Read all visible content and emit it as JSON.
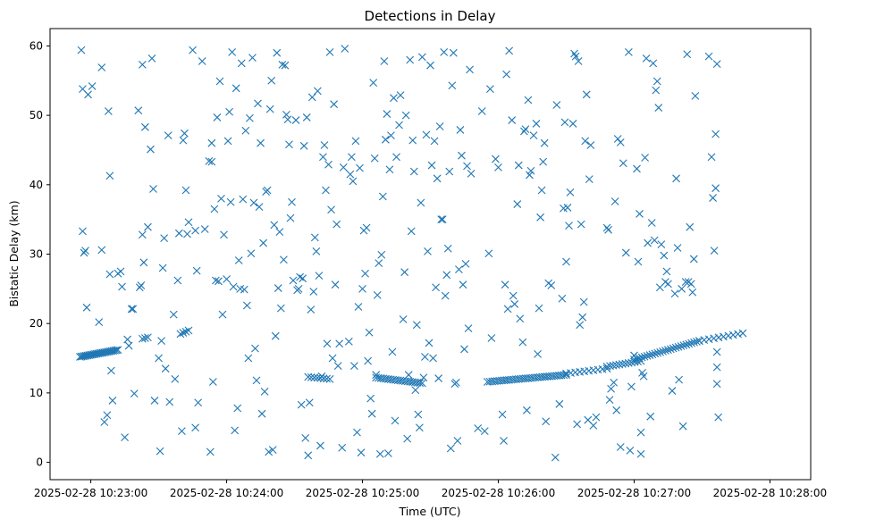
{
  "chart_data": {
    "type": "scatter",
    "title": "Detections in Delay",
    "xlabel": "Time (UTC)",
    "ylabel": "Bistatic Delay (km)",
    "marker": "x",
    "color": "#1f77b4",
    "xlim": [
      -0.3,
      5.3
    ],
    "ylim": [
      -2.5,
      62.5
    ],
    "x_unit": "minutes after 2025-02-28 10:23:00",
    "xticks": [
      {
        "v": 0,
        "label": "2025-02-28 10:23:00"
      },
      {
        "v": 1,
        "label": "2025-02-28 10:24:00"
      },
      {
        "v": 2,
        "label": "2025-02-28 10:25:00"
      },
      {
        "v": 3,
        "label": "2025-02-28 10:26:00"
      },
      {
        "v": 4,
        "label": "2025-02-28 10:27:00"
      },
      {
        "v": 5,
        "label": "2025-02-28 10:28:00"
      }
    ],
    "yticks": [
      0,
      10,
      20,
      30,
      40,
      50,
      60
    ],
    "track_segments": [
      {
        "x_start": -0.08,
        "x_end": 0.2,
        "y_start": 15.2,
        "y_end": 16.2,
        "count": 26
      },
      {
        "x_start": 0.38,
        "x_end": 0.42,
        "y_start": 17.8,
        "y_end": 18.0,
        "count": 3
      },
      {
        "x_start": 0.66,
        "x_end": 0.72,
        "y_start": 18.5,
        "y_end": 19.0,
        "count": 4
      },
      {
        "x_start": 1.6,
        "x_end": 1.76,
        "y_start": 12.3,
        "y_end": 12.0,
        "count": 8
      },
      {
        "x_start": 2.1,
        "x_end": 2.44,
        "y_start": 12.2,
        "y_end": 11.4,
        "count": 20
      },
      {
        "x_start": 2.92,
        "x_end": 3.5,
        "y_start": 11.6,
        "y_end": 12.6,
        "count": 34
      },
      {
        "x_start": 3.5,
        "x_end": 3.8,
        "y_start": 12.8,
        "y_end": 13.5,
        "count": 10
      },
      {
        "x_start": 3.8,
        "x_end": 4.05,
        "y_start": 13.8,
        "y_end": 14.6,
        "count": 12
      },
      {
        "x_start": 4.0,
        "x_end": 4.48,
        "y_start": 14.8,
        "y_end": 17.5,
        "count": 26
      },
      {
        "x_start": 4.48,
        "x_end": 4.8,
        "y_start": 17.5,
        "y_end": 18.6,
        "count": 10
      }
    ],
    "scattered_points": [
      [
        -0.07,
        59.4
      ],
      [
        -0.06,
        33.3
      ],
      [
        -0.06,
        53.8
      ],
      [
        -0.05,
        30.2
      ],
      [
        -0.04,
        30.5
      ],
      [
        -0.03,
        22.3
      ],
      [
        -0.02,
        53.0
      ],
      [
        0.01,
        54.2
      ],
      [
        0.06,
        20.2
      ],
      [
        0.08,
        56.9
      ],
      [
        0.08,
        30.6
      ],
      [
        0.1,
        5.8
      ],
      [
        0.12,
        6.8
      ],
      [
        0.13,
        50.6
      ],
      [
        0.14,
        41.3
      ],
      [
        0.14,
        27.1
      ],
      [
        0.15,
        13.2
      ],
      [
        0.16,
        8.9
      ],
      [
        0.2,
        27.2
      ],
      [
        0.22,
        27.5
      ],
      [
        0.23,
        25.3
      ],
      [
        0.25,
        3.6
      ],
      [
        0.27,
        17.7
      ],
      [
        0.28,
        16.8
      ],
      [
        0.3,
        22.1
      ],
      [
        0.31,
        22.1
      ],
      [
        0.32,
        9.9
      ],
      [
        0.35,
        50.7
      ],
      [
        0.36,
        25.2
      ],
      [
        0.37,
        25.5
      ],
      [
        0.38,
        57.3
      ],
      [
        0.38,
        32.8
      ],
      [
        0.39,
        28.8
      ],
      [
        0.4,
        48.3
      ],
      [
        0.42,
        33.9
      ],
      [
        0.44,
        45.1
      ],
      [
        0.45,
        58.2
      ],
      [
        0.46,
        39.4
      ],
      [
        0.47,
        8.9
      ],
      [
        0.5,
        15.0
      ],
      [
        0.51,
        1.6
      ],
      [
        0.52,
        17.5
      ],
      [
        0.53,
        28.0
      ],
      [
        0.54,
        32.3
      ],
      [
        0.55,
        13.5
      ],
      [
        0.57,
        47.1
      ],
      [
        0.58,
        8.7
      ],
      [
        0.61,
        21.3
      ],
      [
        0.62,
        12.0
      ],
      [
        0.64,
        26.2
      ],
      [
        0.65,
        33.0
      ],
      [
        0.67,
        4.5
      ],
      [
        0.68,
        46.4
      ],
      [
        0.69,
        47.4
      ],
      [
        0.7,
        39.2
      ],
      [
        0.71,
        32.9
      ],
      [
        0.72,
        34.6
      ],
      [
        0.75,
        59.4
      ],
      [
        0.77,
        5.0
      ],
      [
        0.77,
        33.4
      ],
      [
        0.78,
        27.6
      ],
      [
        0.79,
        8.6
      ],
      [
        0.82,
        57.8
      ],
      [
        0.84,
        33.6
      ],
      [
        0.87,
        43.4
      ],
      [
        0.88,
        1.5
      ],
      [
        0.89,
        46.0
      ],
      [
        0.89,
        43.3
      ],
      [
        0.9,
        11.6
      ],
      [
        0.91,
        36.5
      ],
      [
        0.92,
        26.2
      ],
      [
        0.93,
        49.7
      ],
      [
        0.94,
        26.1
      ],
      [
        0.95,
        54.9
      ],
      [
        0.96,
        38.0
      ],
      [
        0.97,
        21.3
      ],
      [
        0.98,
        32.8
      ],
      [
        1.0,
        26.4
      ],
      [
        1.01,
        46.3
      ],
      [
        1.02,
        50.5
      ],
      [
        1.03,
        37.5
      ],
      [
        1.04,
        59.1
      ],
      [
        1.05,
        25.3
      ],
      [
        1.06,
        4.6
      ],
      [
        1.07,
        53.9
      ],
      [
        1.08,
        7.8
      ],
      [
        1.09,
        29.1
      ],
      [
        1.1,
        25.0
      ],
      [
        1.11,
        57.5
      ],
      [
        1.12,
        37.9
      ],
      [
        1.13,
        24.9
      ],
      [
        1.14,
        47.8
      ],
      [
        1.15,
        22.6
      ],
      [
        1.16,
        15.0
      ],
      [
        1.17,
        49.6
      ],
      [
        1.18,
        30.1
      ],
      [
        1.19,
        58.3
      ],
      [
        1.2,
        37.4
      ],
      [
        1.21,
        16.4
      ],
      [
        1.22,
        11.8
      ],
      [
        1.23,
        51.7
      ],
      [
        1.24,
        36.8
      ],
      [
        1.25,
        46.0
      ],
      [
        1.26,
        7.0
      ],
      [
        1.27,
        31.6
      ],
      [
        1.28,
        10.2
      ],
      [
        1.29,
        39.0
      ],
      [
        1.3,
        39.2
      ],
      [
        1.31,
        1.5
      ],
      [
        1.32,
        50.9
      ],
      [
        1.33,
        55.0
      ],
      [
        1.34,
        1.8
      ],
      [
        1.35,
        34.2
      ],
      [
        1.36,
        18.2
      ],
      [
        1.37,
        59.0
      ],
      [
        1.38,
        25.1
      ],
      [
        1.39,
        33.2
      ],
      [
        1.4,
        22.2
      ],
      [
        1.41,
        57.3
      ],
      [
        1.42,
        29.2
      ],
      [
        1.43,
        57.2
      ],
      [
        1.44,
        50.1
      ],
      [
        1.45,
        49.4
      ],
      [
        1.46,
        45.8
      ],
      [
        1.47,
        35.2
      ],
      [
        1.48,
        37.5
      ],
      [
        1.49,
        26.2
      ],
      [
        1.51,
        49.3
      ],
      [
        1.52,
        24.8
      ],
      [
        1.53,
        25.0
      ],
      [
        1.54,
        26.7
      ],
      [
        1.55,
        8.3
      ],
      [
        1.56,
        26.5
      ],
      [
        1.57,
        45.6
      ],
      [
        1.58,
        3.5
      ],
      [
        1.59,
        49.7
      ],
      [
        1.6,
        1.0
      ],
      [
        1.61,
        8.6
      ],
      [
        1.62,
        22.0
      ],
      [
        1.63,
        52.6
      ],
      [
        1.64,
        24.6
      ],
      [
        1.65,
        32.4
      ],
      [
        1.66,
        30.4
      ],
      [
        1.67,
        53.5
      ],
      [
        1.68,
        26.9
      ],
      [
        1.69,
        2.4
      ],
      [
        1.7,
        12.4
      ],
      [
        1.71,
        44.0
      ],
      [
        1.72,
        45.7
      ],
      [
        1.73,
        39.2
      ],
      [
        1.74,
        17.1
      ],
      [
        1.75,
        42.9
      ],
      [
        1.76,
        59.1
      ],
      [
        1.77,
        36.4
      ],
      [
        1.78,
        15.0
      ],
      [
        1.79,
        51.6
      ],
      [
        1.8,
        25.6
      ],
      [
        1.81,
        34.3
      ],
      [
        1.82,
        13.9
      ],
      [
        1.83,
        17.1
      ],
      [
        1.85,
        2.1
      ],
      [
        1.86,
        42.5
      ],
      [
        1.87,
        59.6
      ],
      [
        1.9,
        17.4
      ],
      [
        1.91,
        41.5
      ],
      [
        1.92,
        44.0
      ],
      [
        1.93,
        40.5
      ],
      [
        1.94,
        13.9
      ],
      [
        1.95,
        46.3
      ],
      [
        1.96,
        4.3
      ],
      [
        1.97,
        22.4
      ],
      [
        1.98,
        42.4
      ],
      [
        1.99,
        1.4
      ],
      [
        2.0,
        25.0
      ],
      [
        2.01,
        33.4
      ],
      [
        2.02,
        27.2
      ],
      [
        2.03,
        33.8
      ],
      [
        2.04,
        14.6
      ],
      [
        2.05,
        18.7
      ],
      [
        2.06,
        9.2
      ],
      [
        2.07,
        7.0
      ],
      [
        2.08,
        54.7
      ],
      [
        2.09,
        43.8
      ],
      [
        2.1,
        12.6
      ],
      [
        2.11,
        24.1
      ],
      [
        2.12,
        28.7
      ],
      [
        2.13,
        1.2
      ],
      [
        2.14,
        29.9
      ],
      [
        2.15,
        38.3
      ],
      [
        2.16,
        57.8
      ],
      [
        2.17,
        46.5
      ],
      [
        2.18,
        50.2
      ],
      [
        2.19,
        1.3
      ],
      [
        2.2,
        42.2
      ],
      [
        2.21,
        47.1
      ],
      [
        2.22,
        15.9
      ],
      [
        2.23,
        52.5
      ],
      [
        2.24,
        6.0
      ],
      [
        2.25,
        44.0
      ],
      [
        2.27,
        48.6
      ],
      [
        2.28,
        52.9
      ],
      [
        2.3,
        20.6
      ],
      [
        2.31,
        27.4
      ],
      [
        2.32,
        50.0
      ],
      [
        2.33,
        3.4
      ],
      [
        2.34,
        12.6
      ],
      [
        2.35,
        58.0
      ],
      [
        2.36,
        33.3
      ],
      [
        2.37,
        46.4
      ],
      [
        2.38,
        41.9
      ],
      [
        2.39,
        10.4
      ],
      [
        2.4,
        19.8
      ],
      [
        2.41,
        6.9
      ],
      [
        2.42,
        5.0
      ],
      [
        2.43,
        37.4
      ],
      [
        2.44,
        58.4
      ],
      [
        2.45,
        12.2
      ],
      [
        2.46,
        15.2
      ],
      [
        2.47,
        47.2
      ],
      [
        2.48,
        30.4
      ],
      [
        2.49,
        17.2
      ],
      [
        2.5,
        57.2
      ],
      [
        2.51,
        42.8
      ],
      [
        2.52,
        15.0
      ],
      [
        2.53,
        46.3
      ],
      [
        2.54,
        25.2
      ],
      [
        2.55,
        40.9
      ],
      [
        2.56,
        12.1
      ],
      [
        2.57,
        48.4
      ],
      [
        2.58,
        35.0
      ],
      [
        2.59,
        35.0
      ],
      [
        2.6,
        59.1
      ],
      [
        2.61,
        24.0
      ],
      [
        2.62,
        27.0
      ],
      [
        2.63,
        30.8
      ],
      [
        2.64,
        41.9
      ],
      [
        2.65,
        2.0
      ],
      [
        2.66,
        54.3
      ],
      [
        2.67,
        59.0
      ],
      [
        2.68,
        11.3
      ],
      [
        2.69,
        11.5
      ],
      [
        2.7,
        3.1
      ],
      [
        2.71,
        27.8
      ],
      [
        2.72,
        47.9
      ],
      [
        2.73,
        44.2
      ],
      [
        2.74,
        25.6
      ],
      [
        2.75,
        16.3
      ],
      [
        2.76,
        28.6
      ],
      [
        2.77,
        42.7
      ],
      [
        2.78,
        19.3
      ],
      [
        2.79,
        56.6
      ],
      [
        2.8,
        41.6
      ],
      [
        2.85,
        4.9
      ],
      [
        2.88,
        50.6
      ],
      [
        2.9,
        4.5
      ],
      [
        2.93,
        30.1
      ],
      [
        2.94,
        53.8
      ],
      [
        2.95,
        17.9
      ],
      [
        2.98,
        43.7
      ],
      [
        3.0,
        42.5
      ],
      [
        3.03,
        6.9
      ],
      [
        3.04,
        3.1
      ],
      [
        3.05,
        25.6
      ],
      [
        3.06,
        55.9
      ],
      [
        3.07,
        22.1
      ],
      [
        3.08,
        59.3
      ],
      [
        3.1,
        49.3
      ],
      [
        3.11,
        24.0
      ],
      [
        3.12,
        22.8
      ],
      [
        3.14,
        37.2
      ],
      [
        3.15,
        42.8
      ],
      [
        3.16,
        20.7
      ],
      [
        3.18,
        17.3
      ],
      [
        3.19,
        47.7
      ],
      [
        3.2,
        48.0
      ],
      [
        3.21,
        7.5
      ],
      [
        3.22,
        52.2
      ],
      [
        3.23,
        41.4
      ],
      [
        3.24,
        42.0
      ],
      [
        3.26,
        47.1
      ],
      [
        3.28,
        48.8
      ],
      [
        3.29,
        15.6
      ],
      [
        3.3,
        22.2
      ],
      [
        3.31,
        35.3
      ],
      [
        3.32,
        39.2
      ],
      [
        3.33,
        43.3
      ],
      [
        3.34,
        46.0
      ],
      [
        3.35,
        5.9
      ],
      [
        3.37,
        25.8
      ],
      [
        3.39,
        25.5
      ],
      [
        3.42,
        0.7
      ],
      [
        3.43,
        51.5
      ],
      [
        3.45,
        8.4
      ],
      [
        3.47,
        23.6
      ],
      [
        3.48,
        36.6
      ],
      [
        3.49,
        49.0
      ],
      [
        3.5,
        28.9
      ],
      [
        3.51,
        36.7
      ],
      [
        3.52,
        34.1
      ],
      [
        3.53,
        38.9
      ],
      [
        3.55,
        48.8
      ],
      [
        3.56,
        58.9
      ],
      [
        3.57,
        58.5
      ],
      [
        3.58,
        5.5
      ],
      [
        3.59,
        57.8
      ],
      [
        3.6,
        19.8
      ],
      [
        3.61,
        34.3
      ],
      [
        3.62,
        20.9
      ],
      [
        3.63,
        23.1
      ],
      [
        3.64,
        46.3
      ],
      [
        3.65,
        53.0
      ],
      [
        3.66,
        6.1
      ],
      [
        3.67,
        40.8
      ],
      [
        3.68,
        45.7
      ],
      [
        3.7,
        5.3
      ],
      [
        3.72,
        6.5
      ],
      [
        3.8,
        33.8
      ],
      [
        3.81,
        33.5
      ],
      [
        3.82,
        9.0
      ],
      [
        3.83,
        10.6
      ],
      [
        3.85,
        11.5
      ],
      [
        3.86,
        37.6
      ],
      [
        3.87,
        7.5
      ],
      [
        3.88,
        46.6
      ],
      [
        3.9,
        46.1
      ],
      [
        3.9,
        2.2
      ],
      [
        3.92,
        43.1
      ],
      [
        3.94,
        30.2
      ],
      [
        3.96,
        59.1
      ],
      [
        3.97,
        1.7
      ],
      [
        3.98,
        10.9
      ],
      [
        4.0,
        15.4
      ],
      [
        4.02,
        42.3
      ],
      [
        4.03,
        28.9
      ],
      [
        4.04,
        35.8
      ],
      [
        4.05,
        4.3
      ],
      [
        4.05,
        1.2
      ],
      [
        4.06,
        12.9
      ],
      [
        4.07,
        12.4
      ],
      [
        4.08,
        43.9
      ],
      [
        4.09,
        58.2
      ],
      [
        4.1,
        31.6
      ],
      [
        4.12,
        6.6
      ],
      [
        4.13,
        34.5
      ],
      [
        4.14,
        57.5
      ],
      [
        4.15,
        32.0
      ],
      [
        4.16,
        53.6
      ],
      [
        4.17,
        54.9
      ],
      [
        4.18,
        51.1
      ],
      [
        4.19,
        25.2
      ],
      [
        4.2,
        31.4
      ],
      [
        4.22,
        29.8
      ],
      [
        4.23,
        26.0
      ],
      [
        4.24,
        27.5
      ],
      [
        4.25,
        25.7
      ],
      [
        4.28,
        10.3
      ],
      [
        4.3,
        24.3
      ],
      [
        4.31,
        40.9
      ],
      [
        4.32,
        30.9
      ],
      [
        4.33,
        11.9
      ],
      [
        4.35,
        25.0
      ],
      [
        4.36,
        5.2
      ],
      [
        4.38,
        26.0
      ],
      [
        4.39,
        58.8
      ],
      [
        4.4,
        26.0
      ],
      [
        4.41,
        33.9
      ],
      [
        4.42,
        25.7
      ],
      [
        4.43,
        24.5
      ],
      [
        4.44,
        29.3
      ],
      [
        4.45,
        52.8
      ],
      [
        4.55,
        58.5
      ],
      [
        4.57,
        44.0
      ],
      [
        4.58,
        38.1
      ],
      [
        4.59,
        30.5
      ],
      [
        4.6,
        39.5
      ],
      [
        4.6,
        47.3
      ],
      [
        4.61,
        57.4
      ],
      [
        4.61,
        15.9
      ],
      [
        4.61,
        13.7
      ],
      [
        4.61,
        11.3
      ],
      [
        4.62,
        6.5
      ]
    ]
  }
}
